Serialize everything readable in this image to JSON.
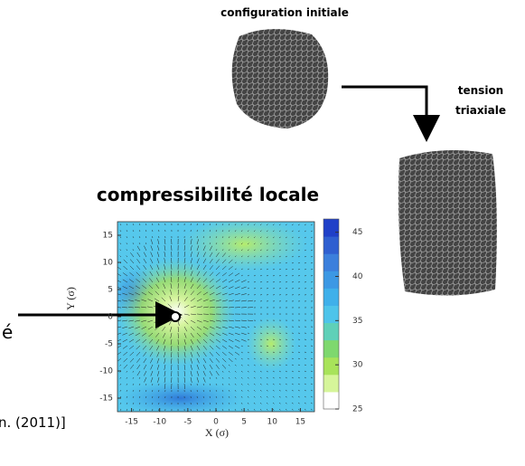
{
  "labels": {
    "initial": "configuration initiale",
    "tension_1": "tension",
    "tension_2": "triaxiale",
    "plot_title": "compressibilité locale",
    "left_fragment": "é",
    "citation_fragment": "n. (2011)]"
  },
  "plot": {
    "x_label": "X (σ)",
    "y_label": "Y (σ)",
    "xlim": [
      -17.5,
      17.5
    ],
    "ylim": [
      -17.5,
      17.5
    ],
    "xticks": [
      -15,
      -10,
      -5,
      0,
      5,
      10,
      15
    ],
    "yticks": [
      -15,
      -10,
      -5,
      0,
      5,
      10,
      15
    ],
    "colorbar_lim": [
      25,
      46.5
    ],
    "colorbar_ticks": [
      25,
      30,
      35,
      40,
      45
    ]
  }
}
